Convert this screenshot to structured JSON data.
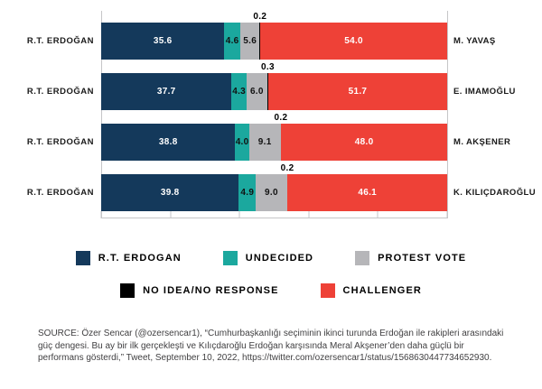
{
  "chart_data": {
    "type": "bar",
    "orientation": "horizontal",
    "stacked": true,
    "xlim": [
      0,
      100
    ],
    "x_ticks": [
      0,
      20,
      40,
      60,
      80,
      100
    ],
    "grid": "vertical boundary lines at 0 and 100 only, no tick labels",
    "legend_position": "bottom, two centered rows",
    "series_keys": [
      "erdogan",
      "undecided",
      "protest_vote",
      "no_idea_no_response",
      "challenger"
    ],
    "colors": {
      "erdogan": "#14395B",
      "undecided": "#1BA89E",
      "protest_vote": "#B6B6B9",
      "no_idea_no_response": "#000000",
      "challenger": "#EE4137"
    },
    "rows": [
      {
        "left_label": "R.T. ERDOĞAN",
        "right_label": "M. YAVAŞ",
        "values": {
          "erdogan": 35.6,
          "undecided": 4.6,
          "protest_vote": 5.6,
          "no_idea_no_response": 0.2,
          "challenger": 54.0
        }
      },
      {
        "left_label": "R.T. ERDOĞAN",
        "right_label": "E. IMAMOĞLU",
        "values": {
          "erdogan": 37.7,
          "undecided": 4.3,
          "protest_vote": 6.0,
          "no_idea_no_response": 0.3,
          "challenger": 51.7
        }
      },
      {
        "left_label": "R.T. ERDOĞAN",
        "right_label": "M. AKŞENER",
        "values": {
          "erdogan": 38.8,
          "undecided": 4.0,
          "protest_vote": 9.1,
          "no_idea_no_response": 0.2,
          "challenger": 48.0
        }
      },
      {
        "left_label": "R.T. ERDOĞAN",
        "right_label": "K. KILIÇDAROĞLU",
        "values": {
          "erdogan": 39.8,
          "undecided": 4.9,
          "protest_vote": 9.0,
          "no_idea_no_response": 0.2,
          "challenger": 46.1
        }
      }
    ],
    "legend": {
      "row1": [
        {
          "key": "erdogan",
          "label": "R.T. ERDOGAN"
        },
        {
          "key": "undecided",
          "label": "UNDECIDED"
        },
        {
          "key": "protest_vote",
          "label": "PROTEST VOTE"
        }
      ],
      "row2": [
        {
          "key": "no_idea_no_response",
          "label": "NO IDEA/NO RESPONSE"
        },
        {
          "key": "challenger",
          "label": "CHALLENGER"
        }
      ]
    }
  },
  "source": {
    "text": "SOURCE: Özer Sencar (@ozersencar1), “Cumhurbaşkanlığı seçiminin ikinci turunda Erdoğan ile rakipleri arasındaki güç dengesi. Bu ay bir ilk gerçekleşti ve Kılıçdaroğlu Erdoğan karşısında Meral Akşener’den daha güçlü bir performans gösterdi,” Tweet, September 10, 2022, https://twitter.com/ozersencar1/status/1568630447734652930."
  }
}
